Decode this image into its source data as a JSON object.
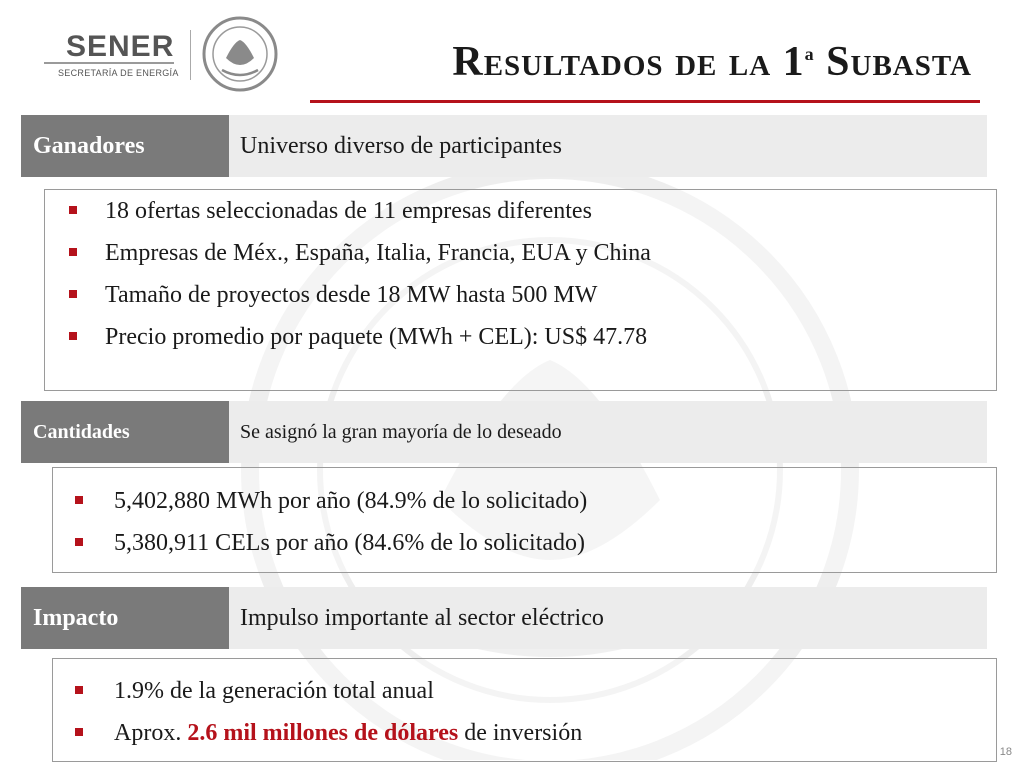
{
  "header": {
    "logo_name": "SENER",
    "logo_subtitle": "SECRETARÍA DE ENERGÍA",
    "title_main": "Resultados de la 1",
    "title_sup": "a",
    "title_tail": " Subasta"
  },
  "sections": [
    {
      "tag": "Ganadores",
      "desc": "Universo diverso de participantes",
      "items": [
        "18 ofertas seleccionadas de 11 empresas diferentes",
        "Empresas de Méx., España, Italia, Francia, EUA y China",
        "Tamaño de proyectos desde 18 MW hasta 500 MW",
        "Precio promedio por paquete (MWh + CEL): US$ 47.78"
      ]
    },
    {
      "tag": "Cantidades",
      "desc": "Se asignó la gran mayoría de lo deseado",
      "items": [
        "5,402,880 MWh por año (84.9% de lo solicitado)",
        "5,380,911 CELs por año (84.6% de lo solicitado)"
      ]
    },
    {
      "tag": "Impacto",
      "desc": "Impulso importante al sector eléctrico",
      "items": [
        "1.9% de la generación total anual"
      ],
      "last_item": {
        "prefix": "Aprox. ",
        "highlight": "2.6 mil millones de dólares",
        "suffix": " de inversión"
      }
    }
  ],
  "page_number": "18",
  "colors": {
    "accent": "#b5121b",
    "tag_bg": "#7a7a7a",
    "bar_bg": "#ececec"
  }
}
